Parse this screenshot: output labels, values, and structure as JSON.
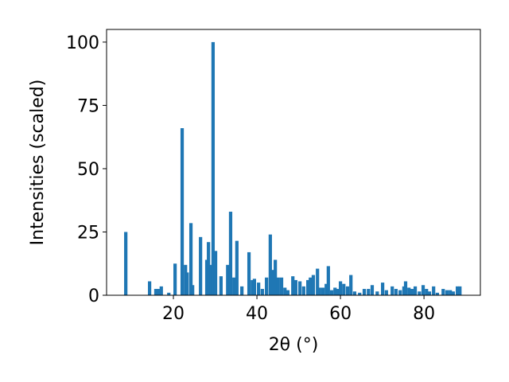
{
  "chart_data": {
    "type": "bar",
    "x": [
      8.6,
      14.3,
      15.8,
      16.4,
      17.1,
      18.9,
      20.4,
      22.1,
      22.9,
      23.3,
      24.2,
      24.6,
      26.5,
      28.0,
      28.4,
      29.0,
      29.5,
      30.1,
      31.4,
      33.0,
      33.7,
      34.5,
      35.2,
      36.4,
      38.1,
      38.9,
      39.4,
      40.4,
      41.3,
      42.3,
      43.2,
      43.8,
      44.4,
      45.1,
      45.9,
      46.7,
      47.4,
      48.6,
      49.3,
      50.3,
      51.2,
      52.2,
      52.8,
      53.5,
      54.5,
      55.0,
      55.8,
      56.6,
      57.1,
      57.9,
      58.7,
      59.4,
      60.0,
      60.8,
      61.7,
      62.5,
      63.4,
      64.6,
      65.7,
      66.7,
      67.6,
      68.8,
      70.1,
      71.0,
      72.4,
      73.3,
      74.3,
      75.2,
      75.6,
      76.4,
      77.1,
      77.9,
      78.9,
      79.8,
      80.6,
      81.3,
      82.3,
      83.2,
      84.6,
      85.5,
      86.3,
      87.0,
      88.0,
      88.6
    ],
    "values": [
      25,
      5.5,
      2.5,
      2.5,
      3.5,
      1,
      12.5,
      66,
      12,
      9,
      28.5,
      4,
      23,
      14,
      21,
      12,
      100,
      17.5,
      7.5,
      12,
      33,
      7,
      21.5,
      3.5,
      17,
      6,
      6.5,
      5,
      2.5,
      7,
      24,
      10,
      14,
      7,
      7,
      3,
      2,
      7.5,
      6,
      5.5,
      3.5,
      6,
      7,
      8,
      10.5,
      3,
      3,
      4.5,
      11.5,
      2,
      3,
      2.5,
      5.5,
      4.5,
      3.5,
      8,
      1.5,
      1,
      2.5,
      2.5,
      4,
      1.5,
      5,
      2,
      3.5,
      2.5,
      2,
      3.5,
      5.5,
      3,
      2.5,
      3.5,
      1.5,
      4,
      2.5,
      1.5,
      3.5,
      1,
      2.5,
      2,
      2,
      1.5,
      3.5,
      3.5
    ],
    "color": "#1f77b4",
    "xlabel": "2θ (°)",
    "ylabel": "Intensities (scaled)",
    "xlim": [
      4,
      93.5
    ],
    "ylim": [
      0,
      105
    ],
    "xticks": [
      20,
      40,
      60,
      80
    ],
    "yticks": [
      0,
      25,
      50,
      75,
      100
    ]
  }
}
